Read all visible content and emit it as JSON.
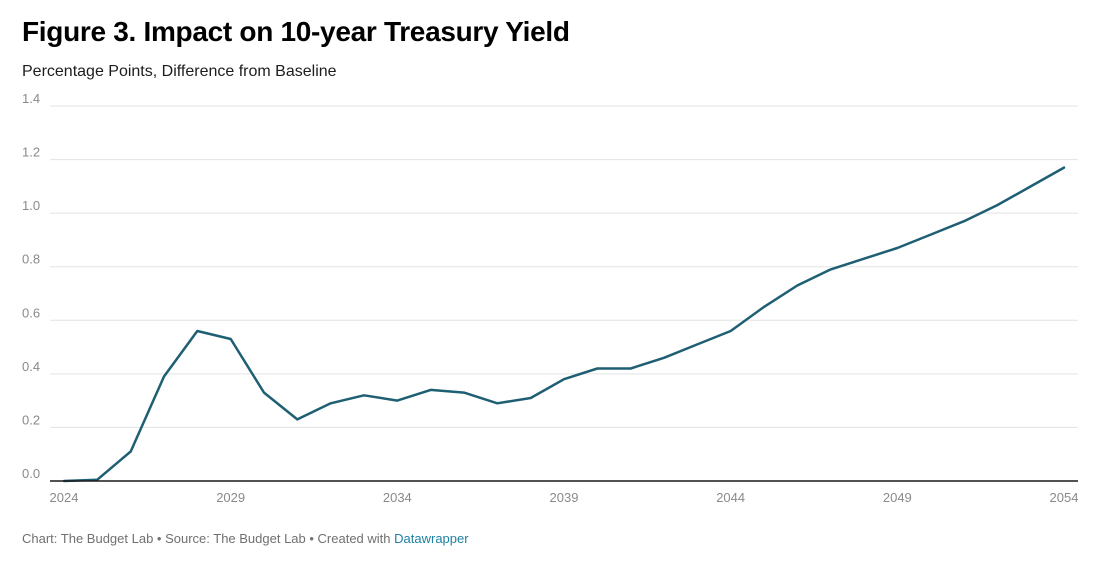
{
  "chart_data": {
    "type": "line",
    "title": "Figure 3. Impact on 10-year Treasury Yield",
    "subtitle": "Percentage Points, Difference from Baseline",
    "xlabel": "",
    "ylabel": "",
    "xlim": [
      2024,
      2054
    ],
    "ylim": [
      0,
      1.4
    ],
    "x_ticks": [
      2024,
      2029,
      2034,
      2039,
      2044,
      2049,
      2054
    ],
    "y_ticks": [
      0,
      0.2,
      0.4,
      0.6,
      0.8,
      1.0,
      1.2,
      1.4
    ],
    "y_tick_labels": [
      "0.0",
      "0.2",
      "0.4",
      "0.6",
      "0.8",
      "1.0",
      "1.2",
      "1.4"
    ],
    "grid": true,
    "series": [
      {
        "color": "#1f5f73",
        "x": [
          2024,
          2025,
          2026,
          2027,
          2028,
          2029,
          2030,
          2031,
          2032,
          2033,
          2034,
          2035,
          2036,
          2037,
          2038,
          2039,
          2040,
          2041,
          2042,
          2043,
          2044,
          2045,
          2046,
          2047,
          2048,
          2049,
          2050,
          2051,
          2052,
          2053,
          2054
        ],
        "values": [
          0.0,
          0.005,
          0.11,
          0.39,
          0.56,
          0.53,
          0.33,
          0.23,
          0.29,
          0.32,
          0.3,
          0.34,
          0.33,
          0.29,
          0.31,
          0.38,
          0.42,
          0.42,
          0.46,
          0.51,
          0.56,
          0.65,
          0.73,
          0.79,
          0.83,
          0.87,
          0.92,
          0.97,
          1.03,
          1.1,
          1.17
        ]
      }
    ]
  },
  "footer": {
    "text": "Chart: The Budget Lab • Source: The Budget Lab • Created with ",
    "link_text": "Datawrapper"
  }
}
